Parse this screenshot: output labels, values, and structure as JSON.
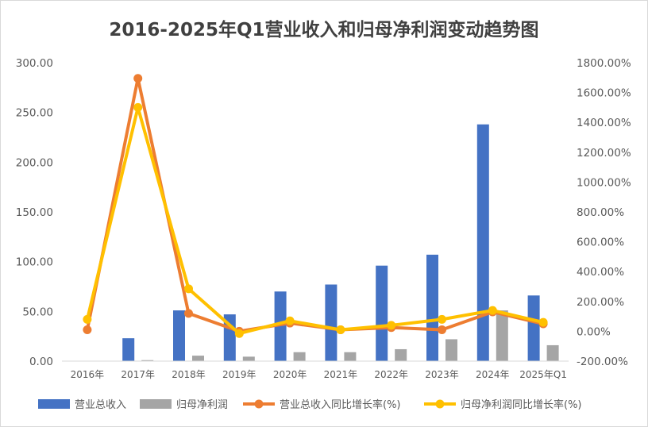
{
  "chart_data": {
    "type": "bar",
    "title": "2016-2025年Q1营业收入和归母净利润变动趋势图",
    "categories": [
      "2016年",
      "2017年",
      "2018年",
      "2019年",
      "2020年",
      "2021年",
      "2022年",
      "2023年",
      "2024年",
      "2025年Q1"
    ],
    "y_left": {
      "ticks": [
        "300.00",
        "250.00",
        "200.00",
        "150.00",
        "100.00",
        "50.00",
        "0.00"
      ],
      "ylim": [
        0,
        300
      ]
    },
    "y_right": {
      "ticks": [
        "1800.00%",
        "1600.00%",
        "1400.00%",
        "1200.00%",
        "1000.00%",
        "800.00%",
        "600.00%",
        "400.00%",
        "200.00%",
        "0.00%",
        "-200.00%"
      ],
      "ylim": [
        -200,
        1800
      ]
    },
    "grid": false,
    "legend_position": "bottom",
    "series": [
      {
        "name": "营业总收入",
        "type": "bar",
        "axis": "left",
        "color": "#4472C4",
        "values": [
          0,
          23,
          51,
          47,
          70,
          77,
          96,
          107,
          238,
          66
        ]
      },
      {
        "name": "归母净利润",
        "type": "bar",
        "axis": "left",
        "color": "#A5A5A5",
        "values": [
          0,
          1,
          5.5,
          4.5,
          9,
          9,
          12,
          22,
          51,
          16
        ]
      },
      {
        "name": "营业总收入同比增长率(%)",
        "type": "line",
        "axis": "right",
        "color": "#ED7D31",
        "values": [
          10,
          1695,
          120,
          0,
          55,
          10,
          25,
          10,
          130,
          50
        ]
      },
      {
        "name": "归母净利润同比增长率(%)",
        "type": "line",
        "axis": "right",
        "color": "#FFC000",
        "values": [
          80,
          1500,
          285,
          -15,
          70,
          10,
          40,
          80,
          140,
          60
        ]
      }
    ]
  }
}
